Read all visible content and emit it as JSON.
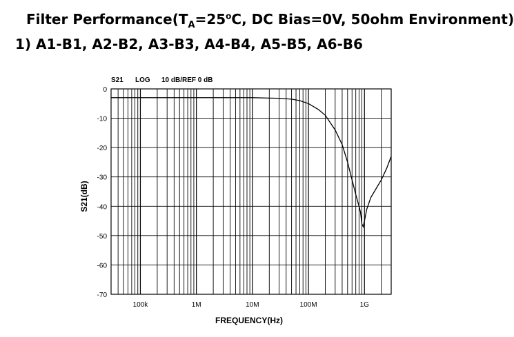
{
  "title": {
    "prefix": "Filter Performance(T",
    "subscript": "A",
    "mid": "=25",
    "superscript": "o",
    "suffix": "C, DC Bias=0V, 50ohm Environment)",
    "line2": "1) A1-B1, A2-B2, A3-B3, A4-B4, A5-B5, A6-B6"
  },
  "header": {
    "param": "S21",
    "format": "LOG",
    "scale": "10 dB/REF 0 dB"
  },
  "chart_data": {
    "type": "line",
    "xscale": "log",
    "xlim": [
      30000,
      3000000000
    ],
    "ylim": [
      -70,
      0
    ],
    "xlabel": "FREQUENCY(Hz)",
    "ylabel": "S21(dB)",
    "grid": true,
    "xticks": [
      {
        "value": 100000,
        "label": "100k"
      },
      {
        "value": 1000000,
        "label": "1M"
      },
      {
        "value": 10000000,
        "label": "10M"
      },
      {
        "value": 100000000,
        "label": "100M"
      },
      {
        "value": 1000000000,
        "label": "1G"
      }
    ],
    "yticks": [
      {
        "value": 0,
        "label": "0"
      },
      {
        "value": -10,
        "label": "-10"
      },
      {
        "value": -20,
        "label": "-20"
      },
      {
        "value": -30,
        "label": "-30"
      },
      {
        "value": -40,
        "label": "-40"
      },
      {
        "value": -50,
        "label": "-50"
      },
      {
        "value": -60,
        "label": "-60"
      },
      {
        "value": -70,
        "label": "-70"
      }
    ],
    "series": [
      {
        "x": [
          30000,
          100000,
          1000000,
          10000000,
          30000000,
          50000000,
          70000000,
          100000000,
          150000000,
          200000000,
          300000000,
          400000000,
          500000000,
          600000000,
          700000000,
          800000000,
          850000000,
          900000000,
          950000000,
          1000000000,
          1100000000,
          1300000000,
          1500000000,
          2000000000,
          2500000000,
          3000000000
        ],
        "y": [
          -3,
          -3,
          -3,
          -3,
          -3.2,
          -3.5,
          -4,
          -5,
          -7,
          -9,
          -14,
          -19,
          -25,
          -31,
          -36,
          -40,
          -42,
          -46,
          -47,
          -45,
          -41,
          -37,
          -35,
          -31,
          -27,
          -23
        ]
      }
    ]
  }
}
